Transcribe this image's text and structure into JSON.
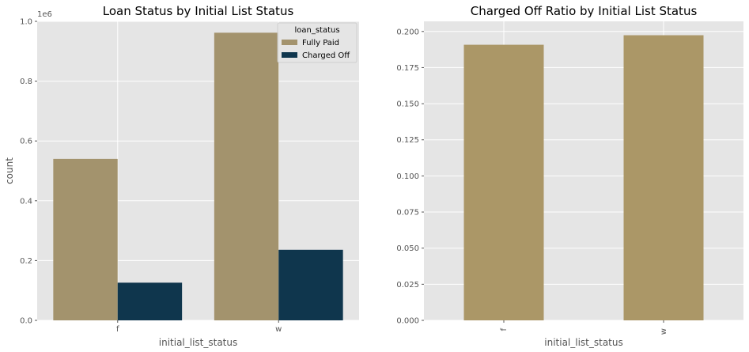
{
  "chart_data": [
    {
      "type": "bar",
      "title": "Loan Status by Initial List Status",
      "xlabel": "initial_list_status",
      "ylabel": "count",
      "y_offset_text": "1e6",
      "categories": [
        "f",
        "w"
      ],
      "ylim": [
        0,
        1000000
      ],
      "yticks": [
        0,
        200000,
        400000,
        600000,
        800000,
        1000000
      ],
      "ytick_labels": [
        "0.0",
        "0.2",
        "0.4",
        "0.6",
        "0.8",
        "1.0"
      ],
      "legend": {
        "title": "loan_status",
        "placement": "top-right"
      },
      "series": [
        {
          "name": "Fully Paid",
          "values": [
            540000,
            962000
          ],
          "color": "#a3936d"
        },
        {
          "name": "Charged Off",
          "values": [
            126000,
            236000
          ],
          "color": "#0f364d"
        }
      ],
      "grid": true
    },
    {
      "type": "bar",
      "title": "Charged Off Ratio by Initial List Status",
      "xlabel": "initial_list_status",
      "ylabel": "",
      "categories": [
        "f",
        "w"
      ],
      "ylim": [
        0,
        0.207
      ],
      "yticks": [
        0,
        0.025,
        0.05,
        0.075,
        0.1,
        0.125,
        0.15,
        0.175,
        0.2
      ],
      "ytick_labels": [
        "0.000",
        "0.025",
        "0.050",
        "0.075",
        "0.100",
        "0.125",
        "0.150",
        "0.175",
        "0.200"
      ],
      "values": [
        0.1908,
        0.1974
      ],
      "color": "#ab9767",
      "rotated_xticks": true,
      "grid": true
    }
  ]
}
